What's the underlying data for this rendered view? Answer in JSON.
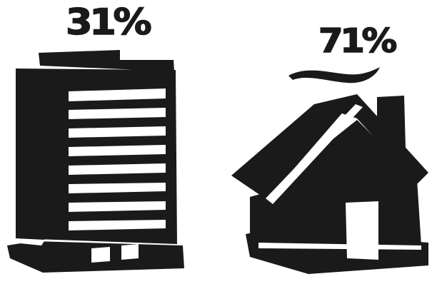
{
  "stats": {
    "building_percentage": "31%",
    "house_percentage": "71%"
  },
  "icons": {
    "building": "office-building-icon",
    "house": "house-icon",
    "smoke": "chimney-smoke-icon"
  },
  "colors": {
    "ink": "#1a1a1a",
    "background": "#ffffff"
  }
}
